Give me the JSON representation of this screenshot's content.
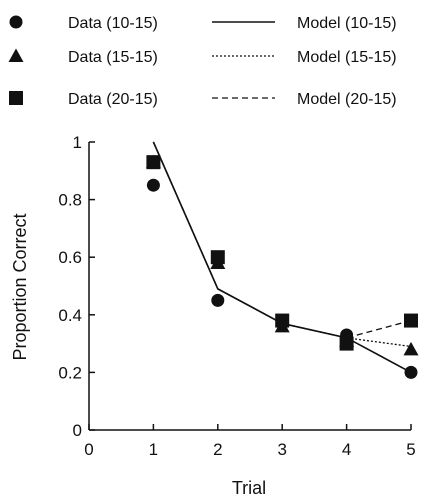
{
  "chart_data": {
    "type": "line",
    "title": "",
    "xlabel": "Trial",
    "ylabel": "Proportion Correct",
    "xlim": [
      0,
      5
    ],
    "ylim": [
      0,
      1
    ],
    "xticks": [
      "0",
      "1",
      "2",
      "3",
      "4",
      "5"
    ],
    "yticks": [
      "0",
      "0.2",
      "0.4",
      "0.6",
      "0.8",
      "1"
    ],
    "grid": false,
    "legend_position": "top",
    "data_series": [
      {
        "name": "Data (10-15)",
        "marker": "circle",
        "x": [
          1,
          2,
          3,
          4,
          5
        ],
        "y": [
          0.85,
          0.45,
          0.37,
          0.33,
          0.2
        ]
      },
      {
        "name": "Data (15-15)",
        "marker": "triangle",
        "x": [
          1,
          2,
          3,
          4,
          5
        ],
        "y": [
          0.93,
          0.58,
          0.36,
          0.31,
          0.28
        ]
      },
      {
        "name": "Data (20-15)",
        "marker": "square",
        "x": [
          1,
          2,
          3,
          4,
          5
        ],
        "y": [
          0.93,
          0.6,
          0.38,
          0.3,
          0.38
        ]
      }
    ],
    "model_series": [
      {
        "name": "Model (10-15)",
        "linestyle": "solid",
        "x": [
          1,
          2,
          3,
          4,
          5
        ],
        "y": [
          1.0,
          0.49,
          0.37,
          0.32,
          0.2
        ]
      },
      {
        "name": "Model (15-15)",
        "linestyle": "dotted",
        "x": [
          1,
          2,
          3,
          4,
          5
        ],
        "y": [
          1.0,
          0.49,
          0.37,
          0.32,
          0.29
        ]
      },
      {
        "name": "Model (20-15)",
        "linestyle": "dashed",
        "x": [
          1,
          2,
          3,
          4,
          5
        ],
        "y": [
          1.0,
          0.49,
          0.37,
          0.32,
          0.38
        ]
      }
    ],
    "colors": {
      "ink": "#111111",
      "background": "#ffffff"
    }
  }
}
